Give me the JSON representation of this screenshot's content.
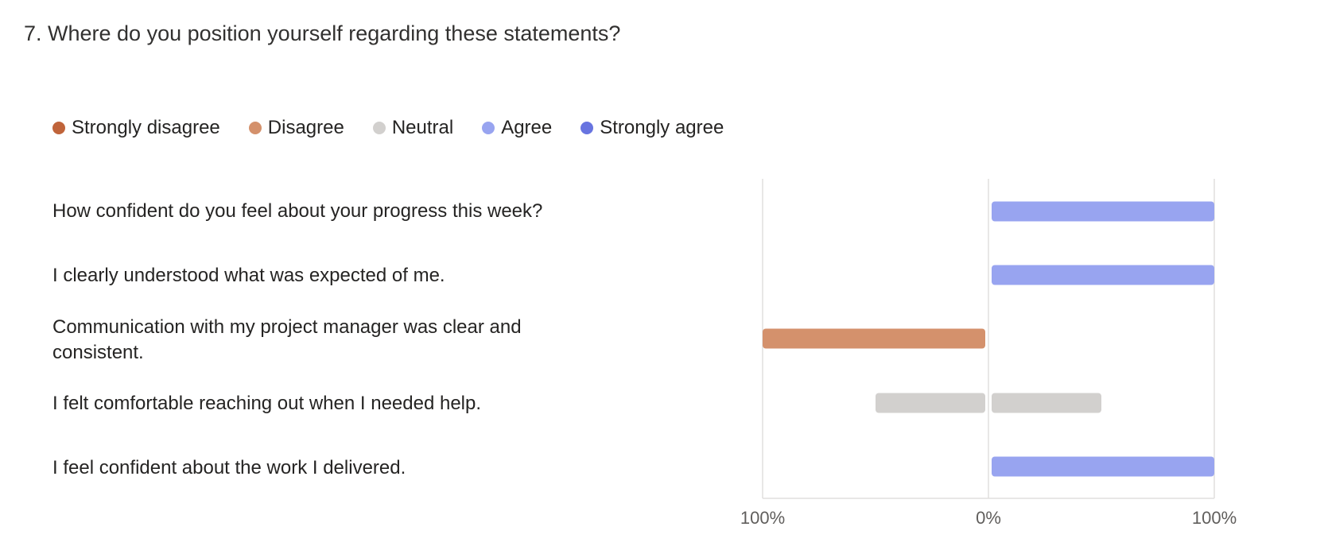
{
  "question": {
    "title": "7. Where do you position yourself regarding these statements?"
  },
  "chart_data": {
    "type": "bar",
    "orientation": "horizontal-diverging",
    "legend_position": "top",
    "categories": [
      "Strongly disagree",
      "Disagree",
      "Neutral",
      "Agree",
      "Strongly agree"
    ],
    "colors": {
      "Strongly disagree": "#c0643a",
      "Disagree": "#d4916c",
      "Neutral": "#d2d0ce",
      "Agree": "#98a4f0",
      "Strongly agree": "#6874e0"
    },
    "statements": [
      {
        "label": "How confident do you feel about your progress this week?",
        "values": {
          "Strongly disagree": 0,
          "Disagree": 0,
          "Neutral": 0,
          "Agree": 100,
          "Strongly agree": 0
        }
      },
      {
        "label": "I clearly understood what was expected of me.",
        "values": {
          "Strongly disagree": 0,
          "Disagree": 0,
          "Neutral": 0,
          "Agree": 100,
          "Strongly agree": 0
        }
      },
      {
        "label": "Communication with my project manager was clear and consistent.",
        "values": {
          "Strongly disagree": 0,
          "Disagree": 100,
          "Neutral": 0,
          "Agree": 0,
          "Strongly agree": 0
        }
      },
      {
        "label": "I felt comfortable reaching out when I needed help.",
        "values": {
          "Strongly disagree": 0,
          "Disagree": 0,
          "Neutral": 100,
          "Agree": 0,
          "Strongly agree": 0
        }
      },
      {
        "label": "I feel confident about the work I delivered.",
        "values": {
          "Strongly disagree": 0,
          "Disagree": 0,
          "Neutral": 0,
          "Agree": 100,
          "Strongly agree": 0
        }
      }
    ],
    "xlim": [
      -100,
      100
    ],
    "x_ticks": [
      "100%",
      "0%",
      "100%"
    ],
    "grid": true
  }
}
